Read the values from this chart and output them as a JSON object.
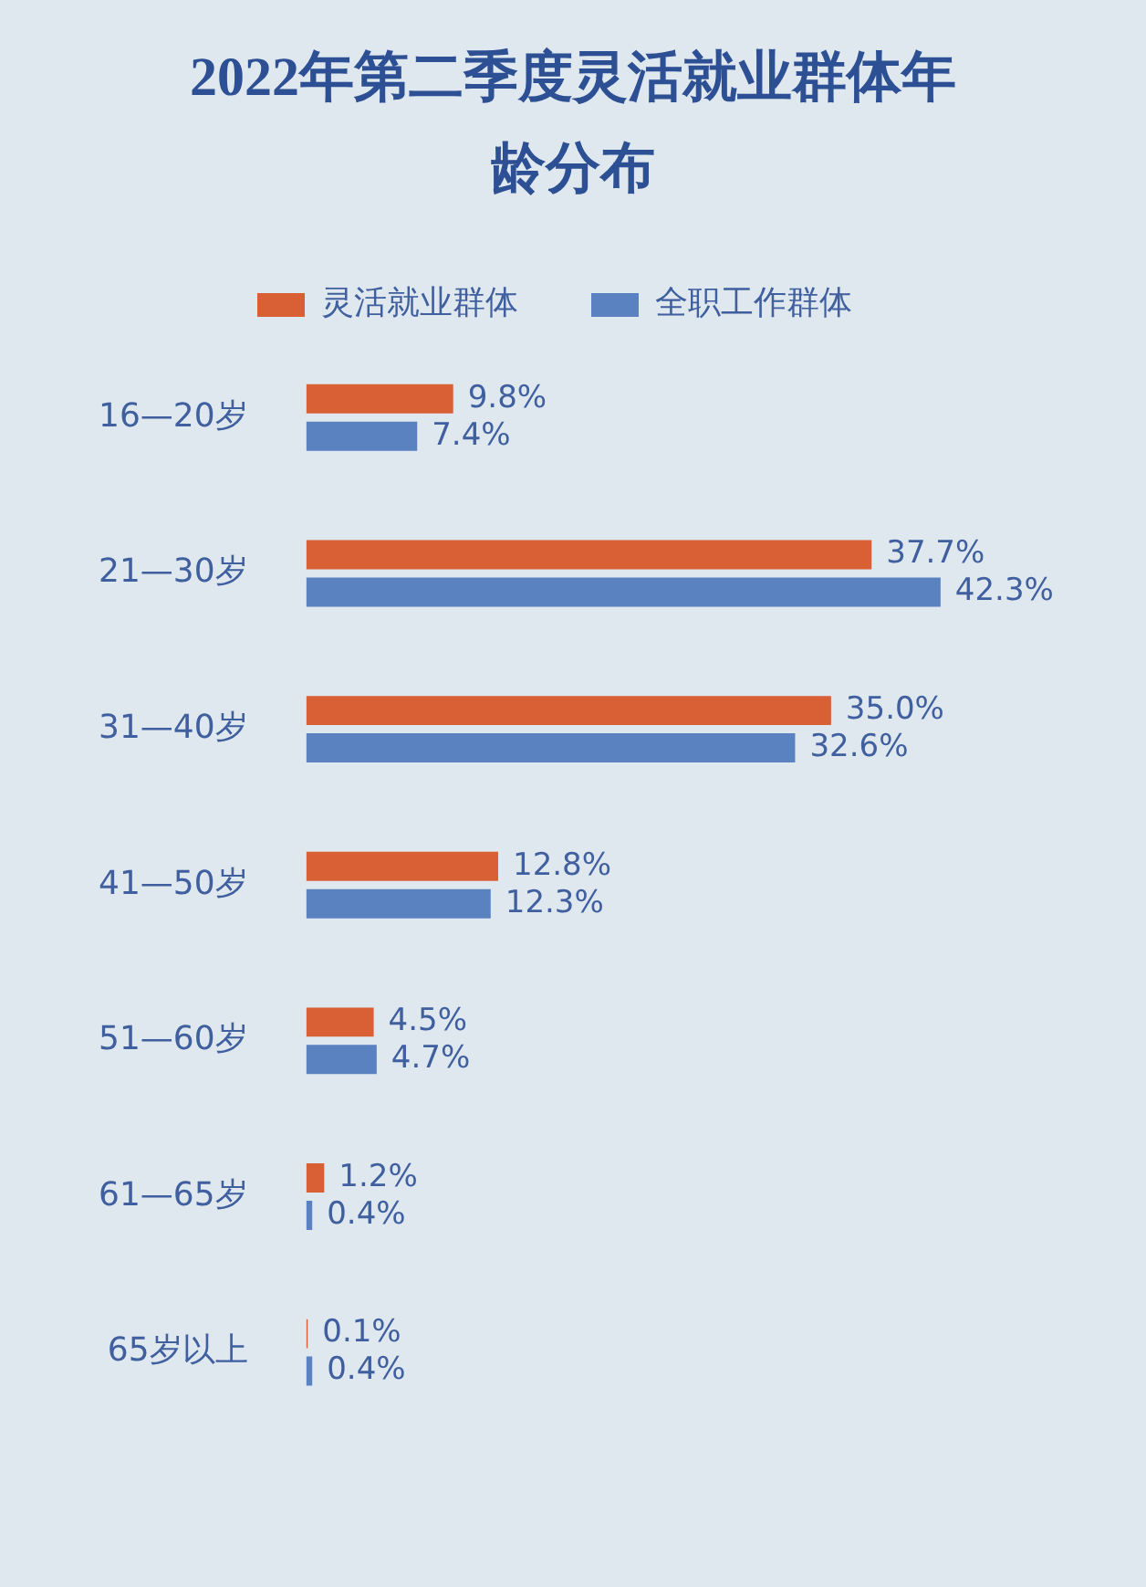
{
  "chart_data": {
    "type": "bar",
    "orientation": "horizontal",
    "title": "2022年第二季度灵活就业群体年龄分布",
    "categories": [
      "16—20岁",
      "21—30岁",
      "31—40岁",
      "41—50岁",
      "51—60岁",
      "61—65岁",
      "65岁以上"
    ],
    "series": [
      {
        "name": "灵活就业群体",
        "color": "#d95f34",
        "values": [
          9.8,
          37.7,
          35.0,
          12.8,
          4.5,
          1.2,
          0.1
        ],
        "value_labels": [
          "9.8%",
          "37.7%",
          "35.0%",
          "12.8%",
          "4.5%",
          "1.2%",
          "0.1%"
        ]
      },
      {
        "name": "全职工作群体",
        "color": "#5b82c0",
        "values": [
          7.4,
          42.3,
          32.6,
          12.3,
          4.7,
          0.4,
          0.4
        ],
        "value_labels": [
          "7.4%",
          "42.3%",
          "32.6%",
          "12.3%",
          "4.7%",
          "0.4%",
          "0.4%"
        ]
      }
    ],
    "legend": "top",
    "tick_labels": "y",
    "grid": false
  }
}
